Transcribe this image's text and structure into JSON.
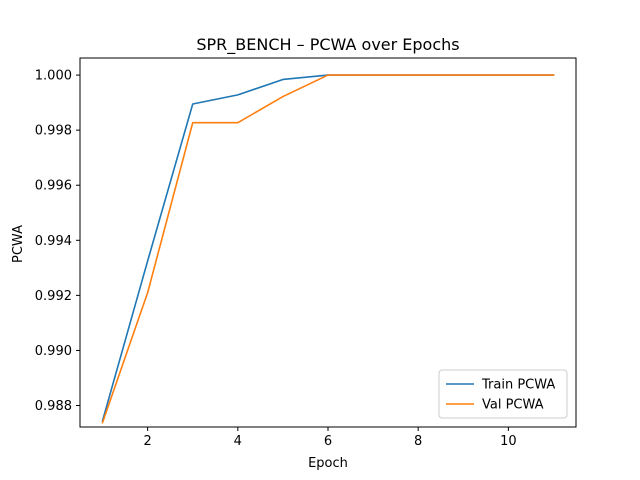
{
  "chart_data": {
    "type": "line",
    "title": "SPR_BENCH – PCWA over Epochs",
    "xlabel": "Epoch",
    "ylabel": "PCWA",
    "x": [
      1,
      2,
      3,
      4,
      5,
      6,
      7,
      8,
      9,
      10,
      11
    ],
    "xlim": [
      0.5,
      11.5
    ],
    "ylim": [
      0.98722,
      1.00062
    ],
    "xticks": [
      2,
      4,
      6,
      8,
      10
    ],
    "yticks": [
      0.988,
      0.99,
      0.992,
      0.994,
      0.996,
      0.998,
      1.0
    ],
    "xtick_labels": [
      "2",
      "4",
      "6",
      "8",
      "10"
    ],
    "ytick_labels": [
      "0.988",
      "0.990",
      "0.992",
      "0.994",
      "0.996",
      "0.998",
      "1.000"
    ],
    "grid": false,
    "legend_position": "bottom-right",
    "series": [
      {
        "name": "Train PCWA",
        "color": "#1f77b4",
        "values": [
          0.98745,
          0.99325,
          0.99895,
          0.99928,
          0.99984,
          1.0,
          1.0,
          1.0,
          1.0,
          1.0,
          1.0
        ]
      },
      {
        "name": "Val PCWA",
        "color": "#ff7f0e",
        "values": [
          0.98738,
          0.9921,
          0.99827,
          0.99827,
          0.99922,
          1.0,
          1.0,
          1.0,
          1.0,
          1.0,
          1.0
        ]
      }
    ]
  }
}
